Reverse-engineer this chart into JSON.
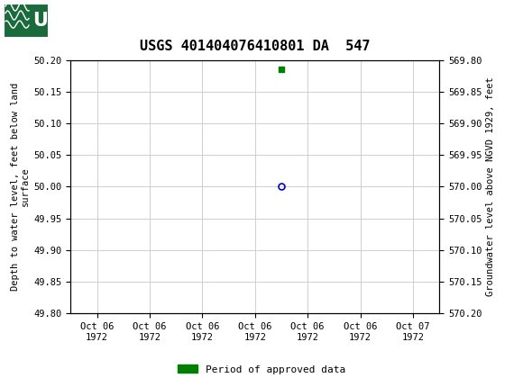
{
  "title": "USGS 401404076410801 DA  547",
  "title_fontsize": 11,
  "ylabel_left": "Depth to water level, feet below land\nsurface",
  "ylabel_right": "Groundwater level above NGVD 1929, feet",
  "ylim_left_top": 49.8,
  "ylim_left_bottom": 50.2,
  "ylim_right_top": 570.2,
  "ylim_right_bottom": 569.8,
  "yticks_left": [
    49.8,
    49.85,
    49.9,
    49.95,
    50.0,
    50.05,
    50.1,
    50.15,
    50.2
  ],
  "ytick_labels_left": [
    "49.80",
    "49.85",
    "49.90",
    "49.95",
    "50.00",
    "50.05",
    "50.10",
    "50.15",
    "50.20"
  ],
  "yticks_right": [
    570.2,
    570.15,
    570.1,
    570.05,
    570.0,
    569.95,
    569.9,
    569.85,
    569.8
  ],
  "ytick_labels_right": [
    "570.20",
    "570.15",
    "570.10",
    "570.05",
    "570.00",
    "569.95",
    "569.90",
    "569.85",
    "569.80"
  ],
  "data_point_x": 3.5,
  "data_point_y": 50.0,
  "green_bar_x": 3.5,
  "green_bar_y": 50.185,
  "circle_color": "#0000cc",
  "green_color": "#008000",
  "background_color": "#ffffff",
  "header_bg_color": "#1a6b3c",
  "grid_color": "#c8c8c8",
  "xtick_labels": [
    "Oct 06\n1972",
    "Oct 06\n1972",
    "Oct 06\n1972",
    "Oct 06\n1972",
    "Oct 06\n1972",
    "Oct 06\n1972",
    "Oct 07\n1972"
  ],
  "xtick_positions": [
    0,
    1,
    2,
    3,
    4,
    5,
    6
  ],
  "xlim": [
    -0.5,
    6.5
  ],
  "legend_label": "Period of approved data",
  "font_family": "monospace"
}
